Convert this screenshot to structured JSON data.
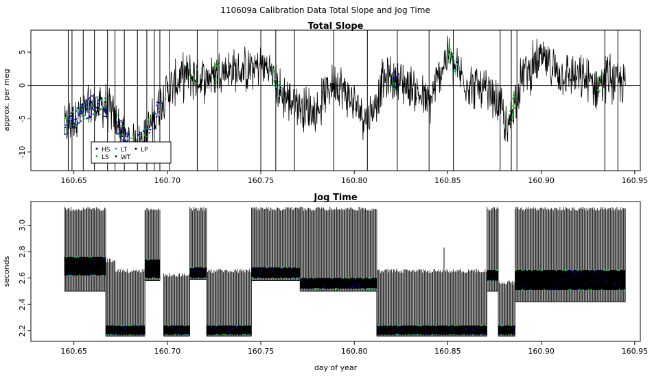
{
  "figure": {
    "title": "110609a   Calibration Data Total Slope and Jog Time",
    "xlabel": "day of year"
  },
  "colors": {
    "background": "#ffffff",
    "trace": "#000000",
    "HS": "#0000cc",
    "LS": "#00dd00",
    "LT": "#00cccc",
    "WT": "#222222",
    "LP": "#000000"
  },
  "chart_data": [
    {
      "type": "line",
      "title": "Total Slope",
      "xlabel": "",
      "ylabel": "approx. per meg",
      "xlim": [
        160.627,
        160.953
      ],
      "ylim": [
        -12.8,
        8.3
      ],
      "xticks": [
        "160.65",
        "160.70",
        "160.75",
        "160.80",
        "160.85",
        "160.90",
        "160.95"
      ],
      "yticks": [
        -10,
        -5,
        0,
        5
      ],
      "reference_line_y": 0,
      "data_range_x": [
        160.645,
        160.945
      ],
      "trend": {
        "x": [
          160.645,
          160.652,
          160.66,
          160.668,
          160.675,
          160.68,
          160.687,
          160.693,
          160.699,
          160.71,
          160.72,
          160.73,
          160.74,
          160.75,
          160.755,
          160.76,
          160.77,
          160.78,
          160.785,
          160.79,
          160.8,
          160.808,
          160.815,
          160.82,
          160.83,
          160.84,
          160.85,
          160.853,
          160.86,
          160.87,
          160.878,
          160.882,
          160.885,
          160.89,
          160.9,
          160.91,
          160.92,
          160.93,
          160.935,
          160.945
        ],
        "y": [
          -6.2,
          -4.5,
          -3.0,
          -3.2,
          -6.5,
          -9.0,
          -8.0,
          -5.0,
          -1.0,
          1.5,
          1.0,
          2.5,
          2.0,
          3.0,
          2.5,
          -1.0,
          -3.0,
          -4.0,
          -1.0,
          1.0,
          -3.0,
          -5.0,
          0.5,
          1.0,
          0.0,
          -3.0,
          5.0,
          3.0,
          0.5,
          -1.0,
          -3.0,
          -7.0,
          -3.0,
          1.5,
          4.0,
          2.0,
          1.0,
          0.0,
          1.5,
          0.0
        ]
      },
      "spread": 2.3,
      "spikes_x": [
        160.647,
        160.649,
        160.655,
        160.661,
        160.668,
        160.672,
        160.677,
        160.684,
        160.689,
        160.693,
        160.696,
        160.701,
        160.716,
        160.727,
        160.75,
        160.758,
        160.768,
        160.789,
        160.807,
        160.823,
        160.84,
        160.853,
        160.878,
        160.884,
        160.887,
        160.934,
        160.941
      ],
      "legend": {
        "position": "bottom-left",
        "entries": [
          {
            "label": "HS",
            "color_key": "HS"
          },
          {
            "label": "LT",
            "color_key": "LT"
          },
          {
            "label": "LP",
            "color_key": "LP"
          },
          {
            "label": "LS",
            "color_key": "LS"
          },
          {
            "label": "WT",
            "color_key": "WT"
          }
        ]
      }
    },
    {
      "type": "line",
      "title": "Jog Time",
      "xlabel": "day of year",
      "ylabel": "seconds",
      "xlim": [
        160.627,
        160.953
      ],
      "ylim": [
        2.12,
        3.18
      ],
      "xticks": [
        "160.65",
        "160.70",
        "160.75",
        "160.80",
        "160.85",
        "160.90",
        "160.95"
      ],
      "yticks": [
        2.2,
        2.4,
        2.6,
        2.8,
        3.0
      ],
      "segments": [
        {
          "x0": 160.645,
          "x1": 160.667,
          "lo": 2.5,
          "hi": 3.14,
          "base": 2.62,
          "baseh": 0.14
        },
        {
          "x0": 160.667,
          "x1": 160.672,
          "lo": 2.16,
          "hi": 2.75,
          "base": 2.17,
          "baseh": 0.07
        },
        {
          "x0": 160.672,
          "x1": 160.688,
          "lo": 2.16,
          "hi": 2.67,
          "base": 2.17,
          "baseh": 0.07
        },
        {
          "x0": 160.688,
          "x1": 160.696,
          "lo": 2.58,
          "hi": 3.14,
          "base": 2.6,
          "baseh": 0.14
        },
        {
          "x0": 160.698,
          "x1": 160.712,
          "lo": 2.16,
          "hi": 2.64,
          "base": 2.17,
          "baseh": 0.07
        },
        {
          "x0": 160.712,
          "x1": 160.721,
          "lo": 2.59,
          "hi": 3.14,
          "base": 2.6,
          "baseh": 0.08
        },
        {
          "x0": 160.721,
          "x1": 160.745,
          "lo": 2.16,
          "hi": 2.67,
          "base": 2.17,
          "baseh": 0.07
        },
        {
          "x0": 160.745,
          "x1": 160.771,
          "lo": 2.58,
          "hi": 3.14,
          "base": 2.6,
          "baseh": 0.08
        },
        {
          "x0": 160.771,
          "x1": 160.812,
          "lo": 2.5,
          "hi": 3.14,
          "base": 2.52,
          "baseh": 0.08
        },
        {
          "x0": 160.812,
          "x1": 160.871,
          "lo": 2.16,
          "hi": 2.67,
          "base": 2.17,
          "baseh": 0.07
        },
        {
          "x0": 160.871,
          "x1": 160.877,
          "lo": 2.5,
          "hi": 3.14,
          "base": 2.58,
          "baseh": 0.08
        },
        {
          "x0": 160.877,
          "x1": 160.886,
          "lo": 2.16,
          "hi": 2.58,
          "base": 2.17,
          "baseh": 0.07
        },
        {
          "x0": 160.886,
          "x1": 160.945,
          "lo": 2.42,
          "hi": 3.14,
          "base": 2.51,
          "baseh": 0.15
        }
      ]
    }
  ]
}
